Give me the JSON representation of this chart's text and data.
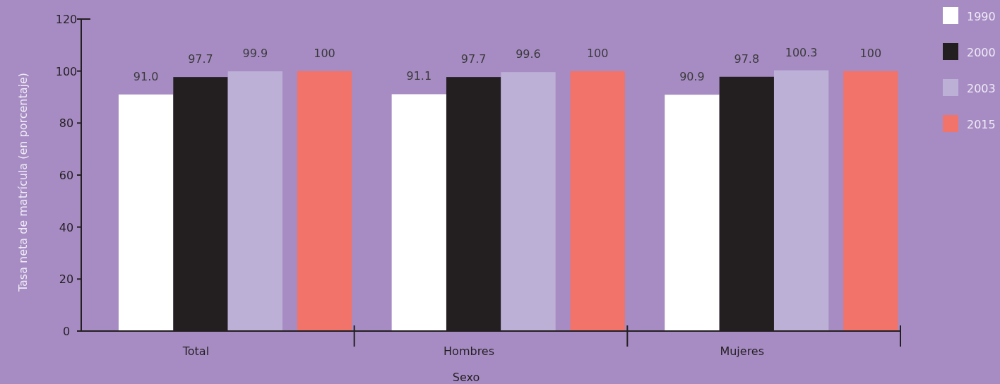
{
  "chart_data": {
    "type": "bar",
    "xlabel": "Sexo",
    "ylabel": "Tasa neta de matrícula (en porcentaje)",
    "categories": [
      "Total",
      "Hombres",
      "Mujeres"
    ],
    "series": [
      {
        "name": "1990",
        "color": "#ffffff",
        "values": [
          91.0,
          91.1,
          90.9
        ],
        "value_labels": [
          "91.0",
          "91.1",
          "90.9"
        ]
      },
      {
        "name": "2000",
        "color": "#231f20",
        "values": [
          97.7,
          97.7,
          97.8
        ],
        "value_labels": [
          "97.7",
          "97.7",
          "97.8"
        ]
      },
      {
        "name": "2003",
        "color": "#bcb0d6",
        "values": [
          99.9,
          99.6,
          100.3
        ],
        "value_labels": [
          "99.9",
          "99.6",
          "100.3"
        ]
      },
      {
        "name": "2015",
        "color": "#f1736a",
        "values": [
          100,
          100,
          100
        ],
        "value_labels": [
          "100",
          "100",
          "100"
        ]
      }
    ],
    "ylim": [
      0,
      120
    ],
    "yticks": [
      0,
      20,
      40,
      60,
      80,
      100,
      120
    ],
    "grid": false,
    "legend": "top right"
  }
}
